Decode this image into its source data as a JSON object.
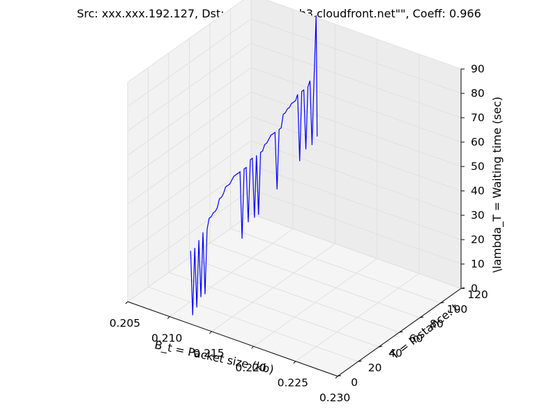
{
  "chart_data": {
    "type": "line",
    "title": "Src: xxx.xxx.192.127, Dst: d5ecgvacntsb3.cloudfront.net\"\", Coeff: 0.966",
    "xlabel": "B_t = Packet size (kb)",
    "ylabel": "T = Instance: t",
    "zlabel": "\\lambda_T = Waiting time (sec)",
    "xlim": [
      0.205,
      0.23
    ],
    "ylim": [
      0,
      120
    ],
    "zlim": [
      0,
      90
    ],
    "x_ticks": [
      "0.205",
      "0.210",
      "0.215",
      "0.220",
      "0.225",
      "0.230"
    ],
    "y_ticks": [
      "0",
      "20",
      "40",
      "60",
      "80",
      "100",
      "120"
    ],
    "z_ticks": [
      "0",
      "10",
      "20",
      "30",
      "40",
      "50",
      "60",
      "70",
      "80",
      "90"
    ],
    "grid": true,
    "series": [
      {
        "color": "#0000ff",
        "points": [
          [
            0.2125,
            0,
            30
          ],
          [
            0.2125,
            2,
            3
          ],
          [
            0.2125,
            4,
            30
          ],
          [
            0.2125,
            6,
            5
          ],
          [
            0.2125,
            8,
            32
          ],
          [
            0.2125,
            10,
            8
          ],
          [
            0.2125,
            12,
            34
          ],
          [
            0.2125,
            14,
            8
          ],
          [
            0.2125,
            16,
            34
          ],
          [
            0.2125,
            18,
            38
          ],
          [
            0.2125,
            20,
            38
          ],
          [
            0.2125,
            22,
            39
          ],
          [
            0.2125,
            24,
            39
          ],
          [
            0.2125,
            26,
            40
          ],
          [
            0.2125,
            28,
            43
          ],
          [
            0.2125,
            30,
            43
          ],
          [
            0.2125,
            32,
            44
          ],
          [
            0.2125,
            34,
            46
          ],
          [
            0.2125,
            36,
            46
          ],
          [
            0.2125,
            38,
            46
          ],
          [
            0.2125,
            40,
            47
          ],
          [
            0.2125,
            42,
            48
          ],
          [
            0.2125,
            44,
            48
          ],
          [
            0.2125,
            46,
            48
          ],
          [
            0.2125,
            48,
            48
          ],
          [
            0.2125,
            50,
            20
          ],
          [
            0.2125,
            52,
            48
          ],
          [
            0.2125,
            54,
            48
          ],
          [
            0.2125,
            56,
            25
          ],
          [
            0.2125,
            58,
            50
          ],
          [
            0.2125,
            60,
            50
          ],
          [
            0.2125,
            62,
            25
          ],
          [
            0.2125,
            64,
            50
          ],
          [
            0.2125,
            66,
            25
          ],
          [
            0.2125,
            68,
            50
          ],
          [
            0.2125,
            70,
            50
          ],
          [
            0.2125,
            72,
            52
          ],
          [
            0.2125,
            74,
            52
          ],
          [
            0.2125,
            76,
            53
          ],
          [
            0.2125,
            78,
            54
          ],
          [
            0.2125,
            80,
            54
          ],
          [
            0.2125,
            82,
            54
          ],
          [
            0.2125,
            84,
            30
          ],
          [
            0.2125,
            86,
            54
          ],
          [
            0.2125,
            88,
            54
          ],
          [
            0.2125,
            90,
            59
          ],
          [
            0.2125,
            92,
            59
          ],
          [
            0.2125,
            94,
            60
          ],
          [
            0.2125,
            96,
            60
          ],
          [
            0.2125,
            98,
            61
          ],
          [
            0.2125,
            100,
            61
          ],
          [
            0.2125,
            102,
            61
          ],
          [
            0.2125,
            104,
            63
          ],
          [
            0.2125,
            106,
            35
          ],
          [
            0.2125,
            108,
            63
          ],
          [
            0.2125,
            110,
            63
          ],
          [
            0.2125,
            112,
            38
          ],
          [
            0.2125,
            114,
            63
          ],
          [
            0.2125,
            116,
            65
          ],
          [
            0.2125,
            118,
            38
          ],
          [
            0.2125,
            120,
            65
          ],
          [
            0.2125,
            122,
            90
          ],
          [
            0.2125,
            123,
            40
          ]
        ]
      }
    ]
  }
}
